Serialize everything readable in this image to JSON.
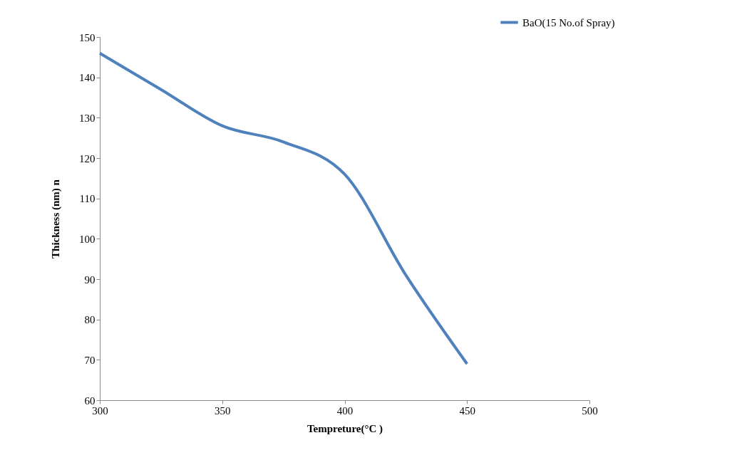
{
  "chart_data": {
    "type": "line",
    "xlabel": "Tempreture(°C )",
    "ylabel": "Thickness (nm) n",
    "x": [
      300,
      325,
      350,
      375,
      400,
      425,
      450
    ],
    "series": [
      {
        "name": "BaO(15 No.of Spray)",
        "color": "#4f81bd",
        "values": [
          146,
          137,
          128,
          124,
          116,
          91,
          69
        ]
      }
    ],
    "xlim": [
      300,
      500
    ],
    "xticks": [
      300,
      350,
      400,
      450,
      500
    ],
    "ylim": [
      60,
      150
    ],
    "yticks": [
      60,
      70,
      80,
      90,
      100,
      110,
      120,
      130,
      140,
      150
    ],
    "grid": false,
    "legend": "top right",
    "marker": "none",
    "line_style": "solid"
  }
}
